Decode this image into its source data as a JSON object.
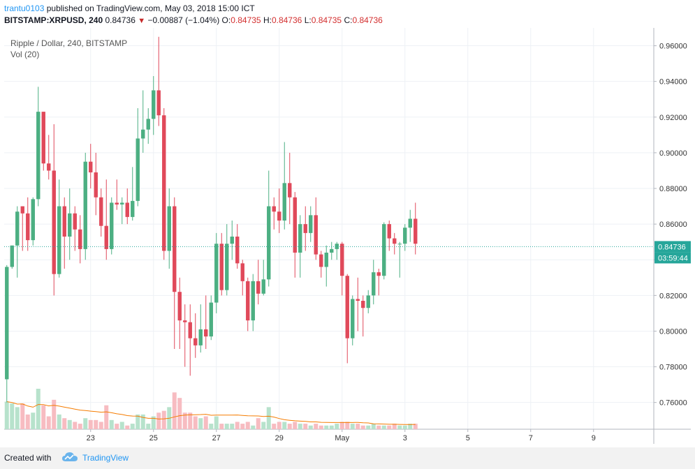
{
  "header": {
    "author": "trantu0103",
    "published": "published on TradingView.com, May 03, 2018 15:00 ICT",
    "symbol": "BITSTAMP:XRPUSD, 240",
    "last": "0.84736",
    "change": "−0.00887 (−1.04%)",
    "o_label": "O:",
    "o_val": "0.84735",
    "h_label": "H:",
    "h_val": "0.84736",
    "l_label": "L:",
    "l_val": "0.84735",
    "c_label": "C:",
    "c_val": "0.84736"
  },
  "legend": {
    "series": "Ripple / Dollar, 240, BITSTAMP",
    "volume": "Vol (20)"
  },
  "footer": {
    "created": "Created with",
    "brand": "TradingView"
  },
  "colors": {
    "up": "#4caf82",
    "down": "#e0495a",
    "vol_up": "#b7e2cc",
    "vol_down": "#f7bcc1",
    "ma": "#f57c00",
    "price_line": "#26a69a",
    "grid": "#eef1f5"
  },
  "chart_data": {
    "type": "candlestick",
    "symbol": "XRPUSD",
    "interval": "240",
    "y_ticks": [
      "0.96000",
      "0.94000",
      "0.92000",
      "0.90000",
      "0.88000",
      "0.86000",
      "0.84000",
      "0.82000",
      "0.80000",
      "0.78000",
      "0.76000"
    ],
    "ylim": [
      0.745,
      0.97
    ],
    "x_ticks": [
      {
        "label": "23",
        "index": 16
      },
      {
        "label": "25",
        "index": 28
      },
      {
        "label": "27",
        "index": 40
      },
      {
        "label": "29",
        "index": 52
      },
      {
        "label": "May",
        "index": 64
      },
      {
        "label": "3",
        "index": 76
      },
      {
        "label": "5",
        "index": 88
      },
      {
        "label": "7",
        "index": 100
      },
      {
        "label": "9",
        "index": 112
      }
    ],
    "x_range": [
      -0.5,
      123.5
    ],
    "last_price": "0.84736",
    "countdown": "03:59:44",
    "volume_ma_period": 20,
    "candles": [
      [
        0.773,
        0.836,
        0.76,
        0.837
      ],
      [
        0.836,
        0.848,
        0.835,
        0.848
      ],
      [
        0.848,
        0.867,
        0.83,
        0.87
      ],
      [
        0.87,
        0.866,
        0.845,
        0.87
      ],
      [
        0.866,
        0.851,
        0.845,
        0.875
      ],
      [
        0.851,
        0.874,
        0.848,
        0.875
      ],
      [
        0.874,
        0.923,
        0.87,
        0.937
      ],
      [
        0.923,
        0.894,
        0.89,
        0.923
      ],
      [
        0.894,
        0.89,
        0.885,
        0.91
      ],
      [
        0.89,
        0.832,
        0.82,
        0.916
      ],
      [
        0.832,
        0.87,
        0.83,
        0.885
      ],
      [
        0.87,
        0.853,
        0.835,
        0.875
      ],
      [
        0.853,
        0.866,
        0.84,
        0.88
      ],
      [
        0.866,
        0.857,
        0.845,
        0.87
      ],
      [
        0.857,
        0.846,
        0.838,
        0.865
      ],
      [
        0.846,
        0.895,
        0.84,
        0.9
      ],
      [
        0.895,
        0.889,
        0.88,
        0.905
      ],
      [
        0.889,
        0.875,
        0.865,
        0.9
      ],
      [
        0.875,
        0.859,
        0.853,
        0.88
      ],
      [
        0.859,
        0.846,
        0.84,
        0.885
      ],
      [
        0.846,
        0.872,
        0.843,
        0.875
      ],
      [
        0.872,
        0.871,
        0.868,
        0.885
      ],
      [
        0.871,
        0.872,
        0.86,
        0.875
      ],
      [
        0.872,
        0.864,
        0.86,
        0.88
      ],
      [
        0.864,
        0.873,
        0.862,
        0.892
      ],
      [
        0.873,
        0.908,
        0.87,
        0.925
      ],
      [
        0.908,
        0.913,
        0.9,
        0.935
      ],
      [
        0.913,
        0.919,
        0.905,
        0.925
      ],
      [
        0.919,
        0.935,
        0.91,
        0.943
      ],
      [
        0.935,
        0.921,
        0.915,
        0.965
      ],
      [
        0.921,
        0.845,
        0.84,
        0.925
      ],
      [
        0.845,
        0.87,
        0.835,
        0.88
      ],
      [
        0.87,
        0.822,
        0.79,
        0.875
      ],
      [
        0.822,
        0.806,
        0.79,
        0.83
      ],
      [
        0.806,
        0.805,
        0.78,
        0.815
      ],
      [
        0.805,
        0.796,
        0.775,
        0.815
      ],
      [
        0.796,
        0.792,
        0.785,
        0.81
      ],
      [
        0.792,
        0.801,
        0.788,
        0.815
      ],
      [
        0.801,
        0.797,
        0.79,
        0.82
      ],
      [
        0.797,
        0.816,
        0.795,
        0.82
      ],
      [
        0.816,
        0.849,
        0.81,
        0.855
      ],
      [
        0.849,
        0.823,
        0.82,
        0.855
      ],
      [
        0.823,
        0.849,
        0.82,
        0.86
      ],
      [
        0.849,
        0.853,
        0.84,
        0.862
      ],
      [
        0.853,
        0.838,
        0.835,
        0.86
      ],
      [
        0.838,
        0.828,
        0.82,
        0.84
      ],
      [
        0.828,
        0.806,
        0.8,
        0.83
      ],
      [
        0.806,
        0.828,
        0.8,
        0.832
      ],
      [
        0.828,
        0.821,
        0.815,
        0.84
      ],
      [
        0.821,
        0.829,
        0.82,
        0.84
      ],
      [
        0.829,
        0.87,
        0.825,
        0.89
      ],
      [
        0.87,
        0.867,
        0.857,
        0.875
      ],
      [
        0.867,
        0.862,
        0.855,
        0.88
      ],
      [
        0.862,
        0.883,
        0.857,
        0.906
      ],
      [
        0.883,
        0.875,
        0.86,
        0.9
      ],
      [
        0.875,
        0.844,
        0.83,
        0.878
      ],
      [
        0.844,
        0.86,
        0.83,
        0.865
      ],
      [
        0.86,
        0.855,
        0.845,
        0.87
      ],
      [
        0.855,
        0.865,
        0.85,
        0.87
      ],
      [
        0.865,
        0.843,
        0.84,
        0.875
      ],
      [
        0.843,
        0.836,
        0.83,
        0.845
      ],
      [
        0.836,
        0.844,
        0.825,
        0.848
      ],
      [
        0.844,
        0.846,
        0.84,
        0.85
      ],
      [
        0.846,
        0.849,
        0.84,
        0.85
      ],
      [
        0.849,
        0.831,
        0.82,
        0.85
      ],
      [
        0.831,
        0.796,
        0.782,
        0.832
      ],
      [
        0.796,
        0.818,
        0.792,
        0.82
      ],
      [
        0.818,
        0.817,
        0.8,
        0.83
      ],
      [
        0.817,
        0.813,
        0.797,
        0.82
      ],
      [
        0.813,
        0.82,
        0.81,
        0.823
      ],
      [
        0.82,
        0.833,
        0.815,
        0.84
      ],
      [
        0.833,
        0.831,
        0.82,
        0.835
      ],
      [
        0.831,
        0.86,
        0.829,
        0.861
      ],
      [
        0.86,
        0.852,
        0.845,
        0.862
      ],
      [
        0.852,
        0.849,
        0.843,
        0.855
      ],
      [
        0.849,
        0.849,
        0.83,
        0.85
      ],
      [
        0.849,
        0.858,
        0.845,
        0.86
      ],
      [
        0.858,
        0.863,
        0.85,
        0.868
      ],
      [
        0.863,
        0.849,
        0.843,
        0.872
      ]
    ],
    "volume": [
      15,
      14,
      12,
      14,
      8,
      9,
      22,
      13,
      7,
      16,
      8,
      6,
      5,
      4,
      3,
      6,
      5,
      5,
      4,
      13,
      5,
      3,
      4,
      2,
      3,
      8,
      8,
      3,
      7,
      9,
      10,
      12,
      20,
      17,
      9,
      9,
      7,
      6,
      7,
      3,
      7,
      3,
      3,
      3,
      4,
      3,
      4,
      2,
      6,
      4,
      12,
      3,
      4,
      4,
      3,
      4,
      3,
      3,
      2,
      3,
      2,
      2,
      2,
      3,
      4,
      4,
      3,
      3,
      2,
      2,
      3,
      2,
      2,
      2,
      3,
      2,
      2,
      3,
      3
    ]
  }
}
